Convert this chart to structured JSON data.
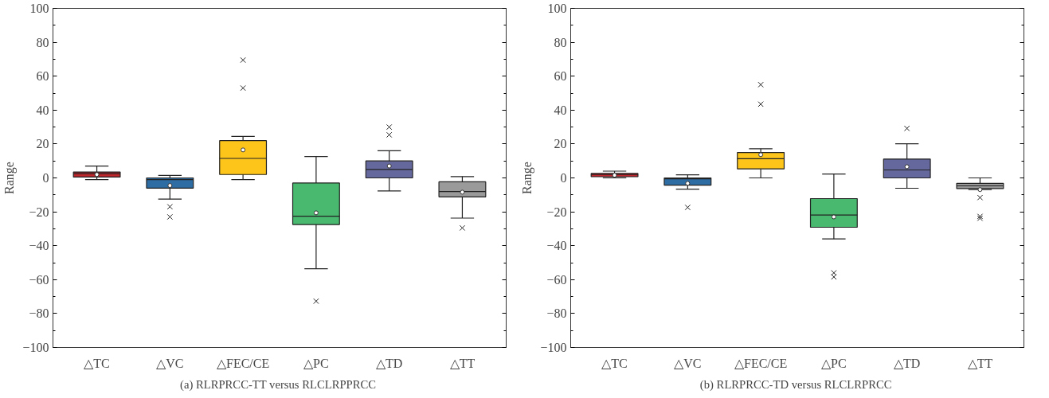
{
  "chart_data": [
    {
      "type": "box",
      "ylabel": "Range",
      "annotations": [
        "(a)  RLRPRCC-TT versus RLCLRPPRCC"
      ],
      "categories": [
        "△TC",
        "△VC",
        "△FEC/CE",
        "△PC",
        "△TD",
        "△TT"
      ],
      "colors": [
        "#c0272d",
        "#2e6ca4",
        "#fdc51a",
        "#48b96f",
        "#65689c",
        "#9a9a9a"
      ],
      "ylim": [
        -100,
        100
      ],
      "yticks": [
        -100,
        -80,
        -60,
        -40,
        -20,
        0,
        20,
        40,
        60,
        80,
        100
      ],
      "grid": false,
      "marker": "cross",
      "boxes": [
        {
          "low": -1,
          "q1": 0.5,
          "median": 2.5,
          "q3": 3.5,
          "high": 7,
          "mean": 2
        },
        {
          "low": -12.5,
          "q1": -6,
          "median": -1,
          "q3": 0,
          "high": 1.5,
          "mean": -4.5,
          "outliers": [
            -17,
            -23
          ]
        },
        {
          "low": -1,
          "q1": 2,
          "median": 11.5,
          "q3": 22,
          "high": 24.5,
          "mean": 16.5,
          "outliers": [
            53,
            69.5
          ]
        },
        {
          "low": -53.6,
          "q1": -27.5,
          "median": -22.6,
          "q3": -3,
          "high": 12.6,
          "mean": -20.6,
          "outliers": [
            -72.7
          ]
        },
        {
          "low": -7.7,
          "q1": 0,
          "median": 5,
          "q3": 10,
          "high": 16,
          "mean": 7,
          "outliers": [
            25.4,
            30
          ]
        },
        {
          "low": -23.7,
          "q1": -11.2,
          "median": -8,
          "q3": -2.3,
          "high": 0.8,
          "mean": -8.4,
          "outliers": [
            -29.5
          ]
        }
      ]
    },
    {
      "type": "box",
      "ylabel": "Range",
      "annotations": [
        "(b)  RLRPRCC-TD versus RLCLRPRCC"
      ],
      "categories": [
        "△TC",
        "△VC",
        "△FEC/CE",
        "△PC",
        "△TD",
        "△TT"
      ],
      "colors": [
        "#c0272d",
        "#2e6ca4",
        "#fdc51a",
        "#48b96f",
        "#65689c",
        "#9a9a9a"
      ],
      "ylim": [
        -100,
        100
      ],
      "yticks": [
        -100,
        -80,
        -60,
        -40,
        -20,
        0,
        20,
        40,
        60,
        80,
        100
      ],
      "grid": false,
      "marker": "cross",
      "boxes": [
        {
          "low": 0,
          "q1": 0.7,
          "median": 2,
          "q3": 2.6,
          "high": 4,
          "mean": 1.6
        },
        {
          "low": -6.6,
          "q1": -4.3,
          "median": -0.5,
          "q3": 0,
          "high": 1.8,
          "mean": -3.2,
          "outliers": [
            -17.4
          ]
        },
        {
          "low": 0,
          "q1": 5.3,
          "median": 11.3,
          "q3": 15,
          "high": 17.2,
          "mean": 13.7,
          "outliers": [
            43.5,
            55
          ]
        },
        {
          "low": -36,
          "q1": -29.1,
          "median": -21.9,
          "q3": -12.2,
          "high": 2.3,
          "mean": -23,
          "outliers": [
            -56,
            -58.4
          ]
        },
        {
          "low": -6.1,
          "q1": 0,
          "median": 4.7,
          "q3": 11.1,
          "high": 20.1,
          "mean": 6.6,
          "outliers": [
            29.2
          ]
        },
        {
          "low": -6.9,
          "q1": -6.3,
          "median": -4.7,
          "q3": -3.2,
          "high": 0,
          "mean": -6.9,
          "outliers": [
            -11.6,
            -22.7,
            -23.8
          ]
        }
      ]
    }
  ]
}
